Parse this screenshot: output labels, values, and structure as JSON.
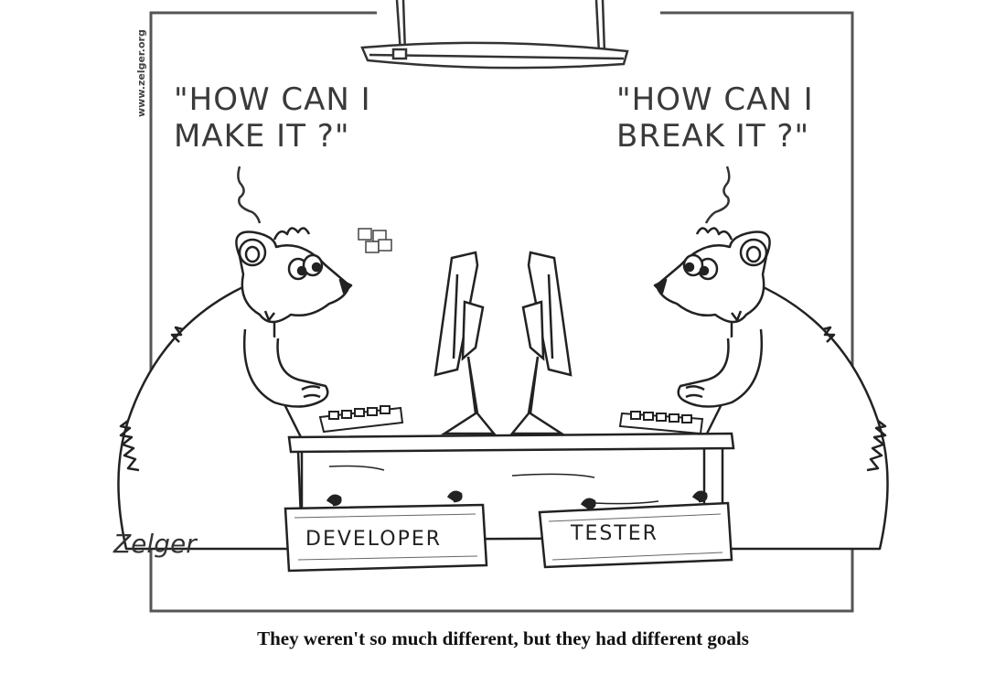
{
  "speech": {
    "developer": [
      "\"HOW CAN I",
      "MAKE IT ?\""
    ],
    "tester": [
      "\"HOW CAN I",
      "BREAK IT ?\""
    ]
  },
  "signs": {
    "developer": "DEVELOPER",
    "tester": "TESTER"
  },
  "signature": "Zelger",
  "website": "www.zelger.org",
  "caption": "They weren't so much different, but they had different goals"
}
